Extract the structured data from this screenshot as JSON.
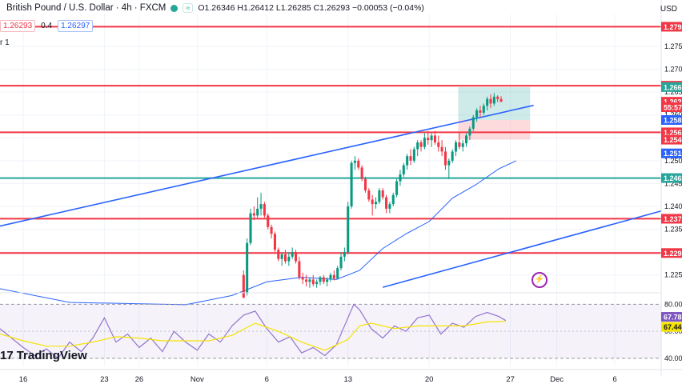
{
  "header": {
    "title": "British Pound / U.S. Dollar · 4h · FXCM",
    "ohlc": "O1.26346  H1.26412  L1.26285  C1.26293  −0.00053 (−0.04%)",
    "pill_label": "≈"
  },
  "quote": {
    "sell": "1.26293",
    "spread": "0.4",
    "buy": "1.26297"
  },
  "indicator_label": "r 1",
  "currency": "USD",
  "branding": {
    "logo_text": "TradingView",
    "logo_mark": "17"
  },
  "chart_data": [
    {
      "type": "candlestick",
      "symbol": "GBPUSD",
      "timeframe": "4h",
      "x_ticks": [
        {
          "label": "16",
          "day": 16
        },
        {
          "label": "23",
          "day": 23
        },
        {
          "label": "26",
          "day": 26
        },
        {
          "label": "Nov",
          "day": 31
        },
        {
          "label": "6",
          "day": 37
        },
        {
          "label": "13",
          "day": 44
        },
        {
          "label": "20",
          "day": 51
        },
        {
          "label": "27",
          "day": 58
        },
        {
          "label": "Dec",
          "day": 62
        },
        {
          "label": "6",
          "day": 67
        }
      ],
      "y_ticks": [
        "1.2750",
        "1.2700",
        "1.2650",
        "1.2600",
        "1.2550",
        "1.2500",
        "1.2450",
        "1.2400",
        "1.2350",
        "1.2300",
        "1.2250"
      ],
      "ylim": [
        1.2225,
        1.282
      ],
      "xlim": [
        14,
        71
      ],
      "price_labels": [
        {
          "value": 1.2793,
          "label": "1.2793",
          "color": "#f23645"
        },
        {
          "value": 1.2664,
          "label": "1.2664",
          "color": "#f23645"
        },
        {
          "value": 1.2661,
          "label": "1.2661",
          "color": "#26a69a"
        },
        {
          "value": 1.2629,
          "label": "1.2629",
          "color": "#f23645"
        },
        {
          "value": 1.2617,
          "label": "55:57",
          "color": "#f23645"
        },
        {
          "value": 1.2589,
          "label": "1.2589",
          "color": "#2962ff"
        },
        {
          "value": 1.2562,
          "label": "1.2562",
          "color": "#f23645"
        },
        {
          "value": 1.2546,
          "label": "1.2546",
          "color": "#f23645"
        },
        {
          "value": 1.2516,
          "label": "1.2516",
          "color": "#2962ff"
        },
        {
          "value": 1.2462,
          "label": "1.2462",
          "color": "#26a69a"
        },
        {
          "value": 1.2373,
          "label": "1.2373",
          "color": "#f23645"
        },
        {
          "value": 1.2298,
          "label": "1.2298",
          "color": "#f23645"
        }
      ],
      "horizontal_levels": [
        {
          "value": 1.2793,
          "color": "#f23645"
        },
        {
          "value": 1.2664,
          "color": "#f23645"
        },
        {
          "value": 1.2562,
          "color": "#f23645"
        },
        {
          "value": 1.2462,
          "color": "#26a69a"
        },
        {
          "value": 1.2373,
          "color": "#f23645"
        },
        {
          "value": 1.2298,
          "color": "#f23645"
        }
      ],
      "trendlines": [
        {
          "from": [
            14,
            1.2357
          ],
          "to": [
            60,
            1.2621
          ],
          "color": "#2962ff"
        },
        {
          "from": [
            47,
            1.2223
          ],
          "to": [
            71,
            1.239
          ],
          "color": "#2962ff"
        }
      ],
      "position_tool": {
        "x_start": 53.5,
        "x_end": 59.7,
        "entry": 1.2589,
        "target": 1.2661,
        "stop": 1.2546
      },
      "moving_average": [
        [
          14,
          1.222
        ],
        [
          20,
          1.219
        ],
        [
          30,
          1.2185
        ],
        [
          34,
          1.2205
        ],
        [
          37,
          1.2235
        ],
        [
          40,
          1.2245
        ],
        [
          43,
          1.224
        ],
        [
          45,
          1.226
        ],
        [
          47,
          1.2308
        ],
        [
          49,
          1.234
        ],
        [
          51,
          1.2367
        ],
        [
          53,
          1.2418
        ],
        [
          55,
          1.2447
        ],
        [
          57,
          1.2482
        ],
        [
          58.5,
          1.25
        ]
      ],
      "candles": [
        {
          "day": 35.0,
          "o": 1.225,
          "h": 1.226,
          "l": 1.22,
          "c": 1.22
        },
        {
          "day": 35.3,
          "o": 1.221,
          "h": 1.233,
          "l": 1.2205,
          "c": 1.232
        },
        {
          "day": 35.6,
          "o": 1.232,
          "h": 1.2395,
          "l": 1.2315,
          "c": 1.2385
        },
        {
          "day": 35.9,
          "o": 1.2385,
          "h": 1.24,
          "l": 1.237,
          "c": 1.238
        },
        {
          "day": 36.2,
          "o": 1.238,
          "h": 1.242,
          "l": 1.2375,
          "c": 1.2395
        },
        {
          "day": 36.5,
          "o": 1.2395,
          "h": 1.243,
          "l": 1.238,
          "c": 1.2405
        },
        {
          "day": 36.8,
          "o": 1.2405,
          "h": 1.241,
          "l": 1.2375,
          "c": 1.238
        },
        {
          "day": 37.1,
          "o": 1.238,
          "h": 1.2385,
          "l": 1.235,
          "c": 1.2355
        },
        {
          "day": 37.4,
          "o": 1.2355,
          "h": 1.236,
          "l": 1.233,
          "c": 1.234
        },
        {
          "day": 37.7,
          "o": 1.234,
          "h": 1.2345,
          "l": 1.23,
          "c": 1.2305
        },
        {
          "day": 38.0,
          "o": 1.2305,
          "h": 1.231,
          "l": 1.228,
          "c": 1.2285
        },
        {
          "day": 38.3,
          "o": 1.2285,
          "h": 1.23,
          "l": 1.227,
          "c": 1.2295
        },
        {
          "day": 38.6,
          "o": 1.2295,
          "h": 1.2305,
          "l": 1.2275,
          "c": 1.228
        },
        {
          "day": 38.9,
          "o": 1.228,
          "h": 1.23,
          "l": 1.227,
          "c": 1.229
        },
        {
          "day": 39.2,
          "o": 1.229,
          "h": 1.231,
          "l": 1.2285,
          "c": 1.23
        },
        {
          "day": 39.5,
          "o": 1.23,
          "h": 1.2305,
          "l": 1.2275,
          "c": 1.228
        },
        {
          "day": 39.8,
          "o": 1.228,
          "h": 1.229,
          "l": 1.224,
          "c": 1.2245
        },
        {
          "day": 40.1,
          "o": 1.2245,
          "h": 1.2255,
          "l": 1.223,
          "c": 1.224
        },
        {
          "day": 40.4,
          "o": 1.224,
          "h": 1.225,
          "l": 1.2225,
          "c": 1.2235
        },
        {
          "day": 40.7,
          "o": 1.2235,
          "h": 1.2245,
          "l": 1.2222,
          "c": 1.224
        },
        {
          "day": 41.0,
          "o": 1.224,
          "h": 1.225,
          "l": 1.2225,
          "c": 1.223
        },
        {
          "day": 41.3,
          "o": 1.223,
          "h": 1.224,
          "l": 1.2222,
          "c": 1.2235
        },
        {
          "day": 41.6,
          "o": 1.2235,
          "h": 1.2248,
          "l": 1.2228,
          "c": 1.2245
        },
        {
          "day": 41.9,
          "o": 1.2245,
          "h": 1.225,
          "l": 1.223,
          "c": 1.2235
        },
        {
          "day": 42.2,
          "o": 1.2235,
          "h": 1.2245,
          "l": 1.2225,
          "c": 1.224
        },
        {
          "day": 42.5,
          "o": 1.224,
          "h": 1.2255,
          "l": 1.2235,
          "c": 1.225
        },
        {
          "day": 42.8,
          "o": 1.225,
          "h": 1.226,
          "l": 1.2238,
          "c": 1.2242
        },
        {
          "day": 43.1,
          "o": 1.2242,
          "h": 1.227,
          "l": 1.224,
          "c": 1.2265
        },
        {
          "day": 43.4,
          "o": 1.2265,
          "h": 1.23,
          "l": 1.226,
          "c": 1.229
        },
        {
          "day": 43.7,
          "o": 1.229,
          "h": 1.231,
          "l": 1.228,
          "c": 1.23
        },
        {
          "day": 44.0,
          "o": 1.23,
          "h": 1.241,
          "l": 1.2295,
          "c": 1.24
        },
        {
          "day": 44.3,
          "o": 1.24,
          "h": 1.25,
          "l": 1.2395,
          "c": 1.2495
        },
        {
          "day": 44.6,
          "o": 1.2495,
          "h": 1.251,
          "l": 1.248,
          "c": 1.25
        },
        {
          "day": 44.9,
          "o": 1.25,
          "h": 1.2505,
          "l": 1.248,
          "c": 1.2485
        },
        {
          "day": 45.2,
          "o": 1.2485,
          "h": 1.249,
          "l": 1.2455,
          "c": 1.246
        },
        {
          "day": 45.5,
          "o": 1.246,
          "h": 1.2465,
          "l": 1.243,
          "c": 1.2435
        },
        {
          "day": 45.8,
          "o": 1.2435,
          "h": 1.244,
          "l": 1.241,
          "c": 1.2415
        },
        {
          "day": 46.1,
          "o": 1.2415,
          "h": 1.2425,
          "l": 1.238,
          "c": 1.2405
        },
        {
          "day": 46.4,
          "o": 1.2405,
          "h": 1.242,
          "l": 1.2395,
          "c": 1.241
        },
        {
          "day": 46.7,
          "o": 1.241,
          "h": 1.244,
          "l": 1.2405,
          "c": 1.2435
        },
        {
          "day": 47.0,
          "o": 1.2435,
          "h": 1.244,
          "l": 1.2415,
          "c": 1.242
        },
        {
          "day": 47.3,
          "o": 1.242,
          "h": 1.2425,
          "l": 1.2385,
          "c": 1.2395
        },
        {
          "day": 47.6,
          "o": 1.2395,
          "h": 1.241,
          "l": 1.2385,
          "c": 1.2405
        },
        {
          "day": 47.9,
          "o": 1.2405,
          "h": 1.243,
          "l": 1.24,
          "c": 1.2425
        },
        {
          "day": 48.2,
          "o": 1.2425,
          "h": 1.246,
          "l": 1.242,
          "c": 1.2455
        },
        {
          "day": 48.5,
          "o": 1.2455,
          "h": 1.248,
          "l": 1.2445,
          "c": 1.247
        },
        {
          "day": 48.8,
          "o": 1.247,
          "h": 1.2495,
          "l": 1.2465,
          "c": 1.249
        },
        {
          "day": 49.1,
          "o": 1.249,
          "h": 1.2515,
          "l": 1.248,
          "c": 1.251
        },
        {
          "day": 49.4,
          "o": 1.251,
          "h": 1.2525,
          "l": 1.249,
          "c": 1.25
        },
        {
          "day": 49.7,
          "o": 1.25,
          "h": 1.253,
          "l": 1.2495,
          "c": 1.2525
        },
        {
          "day": 50.0,
          "o": 1.2525,
          "h": 1.2545,
          "l": 1.251,
          "c": 1.254
        },
        {
          "day": 50.3,
          "o": 1.254,
          "h": 1.2545,
          "l": 1.252,
          "c": 1.253
        },
        {
          "day": 50.6,
          "o": 1.253,
          "h": 1.256,
          "l": 1.2525,
          "c": 1.255
        },
        {
          "day": 50.9,
          "o": 1.255,
          "h": 1.2565,
          "l": 1.2535,
          "c": 1.2545
        },
        {
          "day": 51.2,
          "o": 1.2545,
          "h": 1.256,
          "l": 1.253,
          "c": 1.2555
        },
        {
          "day": 51.5,
          "o": 1.2555,
          "h": 1.2565,
          "l": 1.2535,
          "c": 1.254
        },
        {
          "day": 51.8,
          "o": 1.254,
          "h": 1.2555,
          "l": 1.252,
          "c": 1.253
        },
        {
          "day": 52.1,
          "o": 1.253,
          "h": 1.2545,
          "l": 1.251,
          "c": 1.252
        },
        {
          "day": 52.4,
          "o": 1.252,
          "h": 1.253,
          "l": 1.248,
          "c": 1.249
        },
        {
          "day": 52.7,
          "o": 1.249,
          "h": 1.2505,
          "l": 1.246,
          "c": 1.25
        },
        {
          "day": 53.0,
          "o": 1.25,
          "h": 1.2525,
          "l": 1.2495,
          "c": 1.252
        },
        {
          "day": 53.3,
          "o": 1.252,
          "h": 1.2545,
          "l": 1.251,
          "c": 1.254
        },
        {
          "day": 53.6,
          "o": 1.254,
          "h": 1.256,
          "l": 1.2525,
          "c": 1.253
        },
        {
          "day": 53.9,
          "o": 1.253,
          "h": 1.2545,
          "l": 1.252,
          "c": 1.2538
        },
        {
          "day": 54.2,
          "o": 1.2538,
          "h": 1.256,
          "l": 1.253,
          "c": 1.2555
        },
        {
          "day": 54.5,
          "o": 1.2555,
          "h": 1.2575,
          "l": 1.2545,
          "c": 1.257
        },
        {
          "day": 54.8,
          "o": 1.257,
          "h": 1.26,
          "l": 1.2565,
          "c": 1.2595
        },
        {
          "day": 55.1,
          "o": 1.2595,
          "h": 1.2615,
          "l": 1.2585,
          "c": 1.261
        },
        {
          "day": 55.4,
          "o": 1.261,
          "h": 1.262,
          "l": 1.2595,
          "c": 1.2605
        },
        {
          "day": 55.7,
          "o": 1.2605,
          "h": 1.2625,
          "l": 1.26,
          "c": 1.262
        },
        {
          "day": 56.0,
          "o": 1.262,
          "h": 1.264,
          "l": 1.261,
          "c": 1.2635
        },
        {
          "day": 56.3,
          "o": 1.2635,
          "h": 1.2645,
          "l": 1.2615,
          "c": 1.2625
        },
        {
          "day": 56.6,
          "o": 1.2625,
          "h": 1.2648,
          "l": 1.262,
          "c": 1.264
        },
        {
          "day": 56.9,
          "o": 1.264,
          "h": 1.2643,
          "l": 1.2628,
          "c": 1.2635
        },
        {
          "day": 57.2,
          "o": 1.2635,
          "h": 1.2641,
          "l": 1.2628,
          "c": 1.2629
        }
      ]
    },
    {
      "type": "line",
      "name": "RSI",
      "ylim": [
        34,
        85
      ],
      "y_ticks": [
        "80.00",
        "60.00",
        "40.00"
      ],
      "value_labels": [
        {
          "value": 67.78,
          "label": "67.78",
          "color": "#7e57c2"
        },
        {
          "value": 67.44,
          "label": "67.44",
          "color": "#f5e400"
        }
      ],
      "series": [
        {
          "name": "RSI",
          "color": "#9575cd",
          "points": [
            [
              14,
              62
            ],
            [
              15,
              55
            ],
            [
              16,
              48
            ],
            [
              17,
              42
            ],
            [
              18,
              47
            ],
            [
              19,
              40
            ],
            [
              20,
              52
            ],
            [
              21,
              45
            ],
            [
              22,
              55
            ],
            [
              23,
              70
            ],
            [
              24,
              52
            ],
            [
              25,
              58
            ],
            [
              26,
              48
            ],
            [
              27,
              55
            ],
            [
              28,
              45
            ],
            [
              29,
              60
            ],
            [
              30,
              52
            ],
            [
              31,
              46
            ],
            [
              32,
              58
            ],
            [
              33,
              52
            ],
            [
              34,
              64
            ],
            [
              35,
              72
            ],
            [
              36,
              75
            ],
            [
              37,
              62
            ],
            [
              38,
              52
            ],
            [
              39,
              56
            ],
            [
              40,
              44
            ],
            [
              41,
              48
            ],
            [
              42,
              42
            ],
            [
              43,
              50
            ],
            [
              44,
              70
            ],
            [
              44.5,
              80
            ],
            [
              45,
              76
            ],
            [
              46,
              62
            ],
            [
              47,
              55
            ],
            [
              48,
              64
            ],
            [
              49,
              60
            ],
            [
              50,
              70
            ],
            [
              51,
              72
            ],
            [
              52,
              58
            ],
            [
              53,
              66
            ],
            [
              54,
              63
            ],
            [
              55,
              71
            ],
            [
              56,
              74
            ],
            [
              57,
              71
            ],
            [
              57.6,
              68
            ]
          ]
        },
        {
          "name": "MA",
          "color": "#f5e400",
          "points": [
            [
              14,
              58
            ],
            [
              16,
              53
            ],
            [
              18,
              49
            ],
            [
              20,
              49
            ],
            [
              22,
              52
            ],
            [
              24,
              56
            ],
            [
              26,
              55
            ],
            [
              28,
              53
            ],
            [
              30,
              53
            ],
            [
              32,
              53
            ],
            [
              34,
              57
            ],
            [
              36,
              66
            ],
            [
              38,
              60
            ],
            [
              40,
              52
            ],
            [
              42,
              46
            ],
            [
              44,
              54
            ],
            [
              45,
              64
            ],
            [
              46,
              66
            ],
            [
              48,
              62
            ],
            [
              50,
              64
            ],
            [
              52,
              64
            ],
            [
              54,
              64
            ],
            [
              56,
              67
            ],
            [
              57.6,
              67.4
            ]
          ]
        }
      ]
    }
  ]
}
